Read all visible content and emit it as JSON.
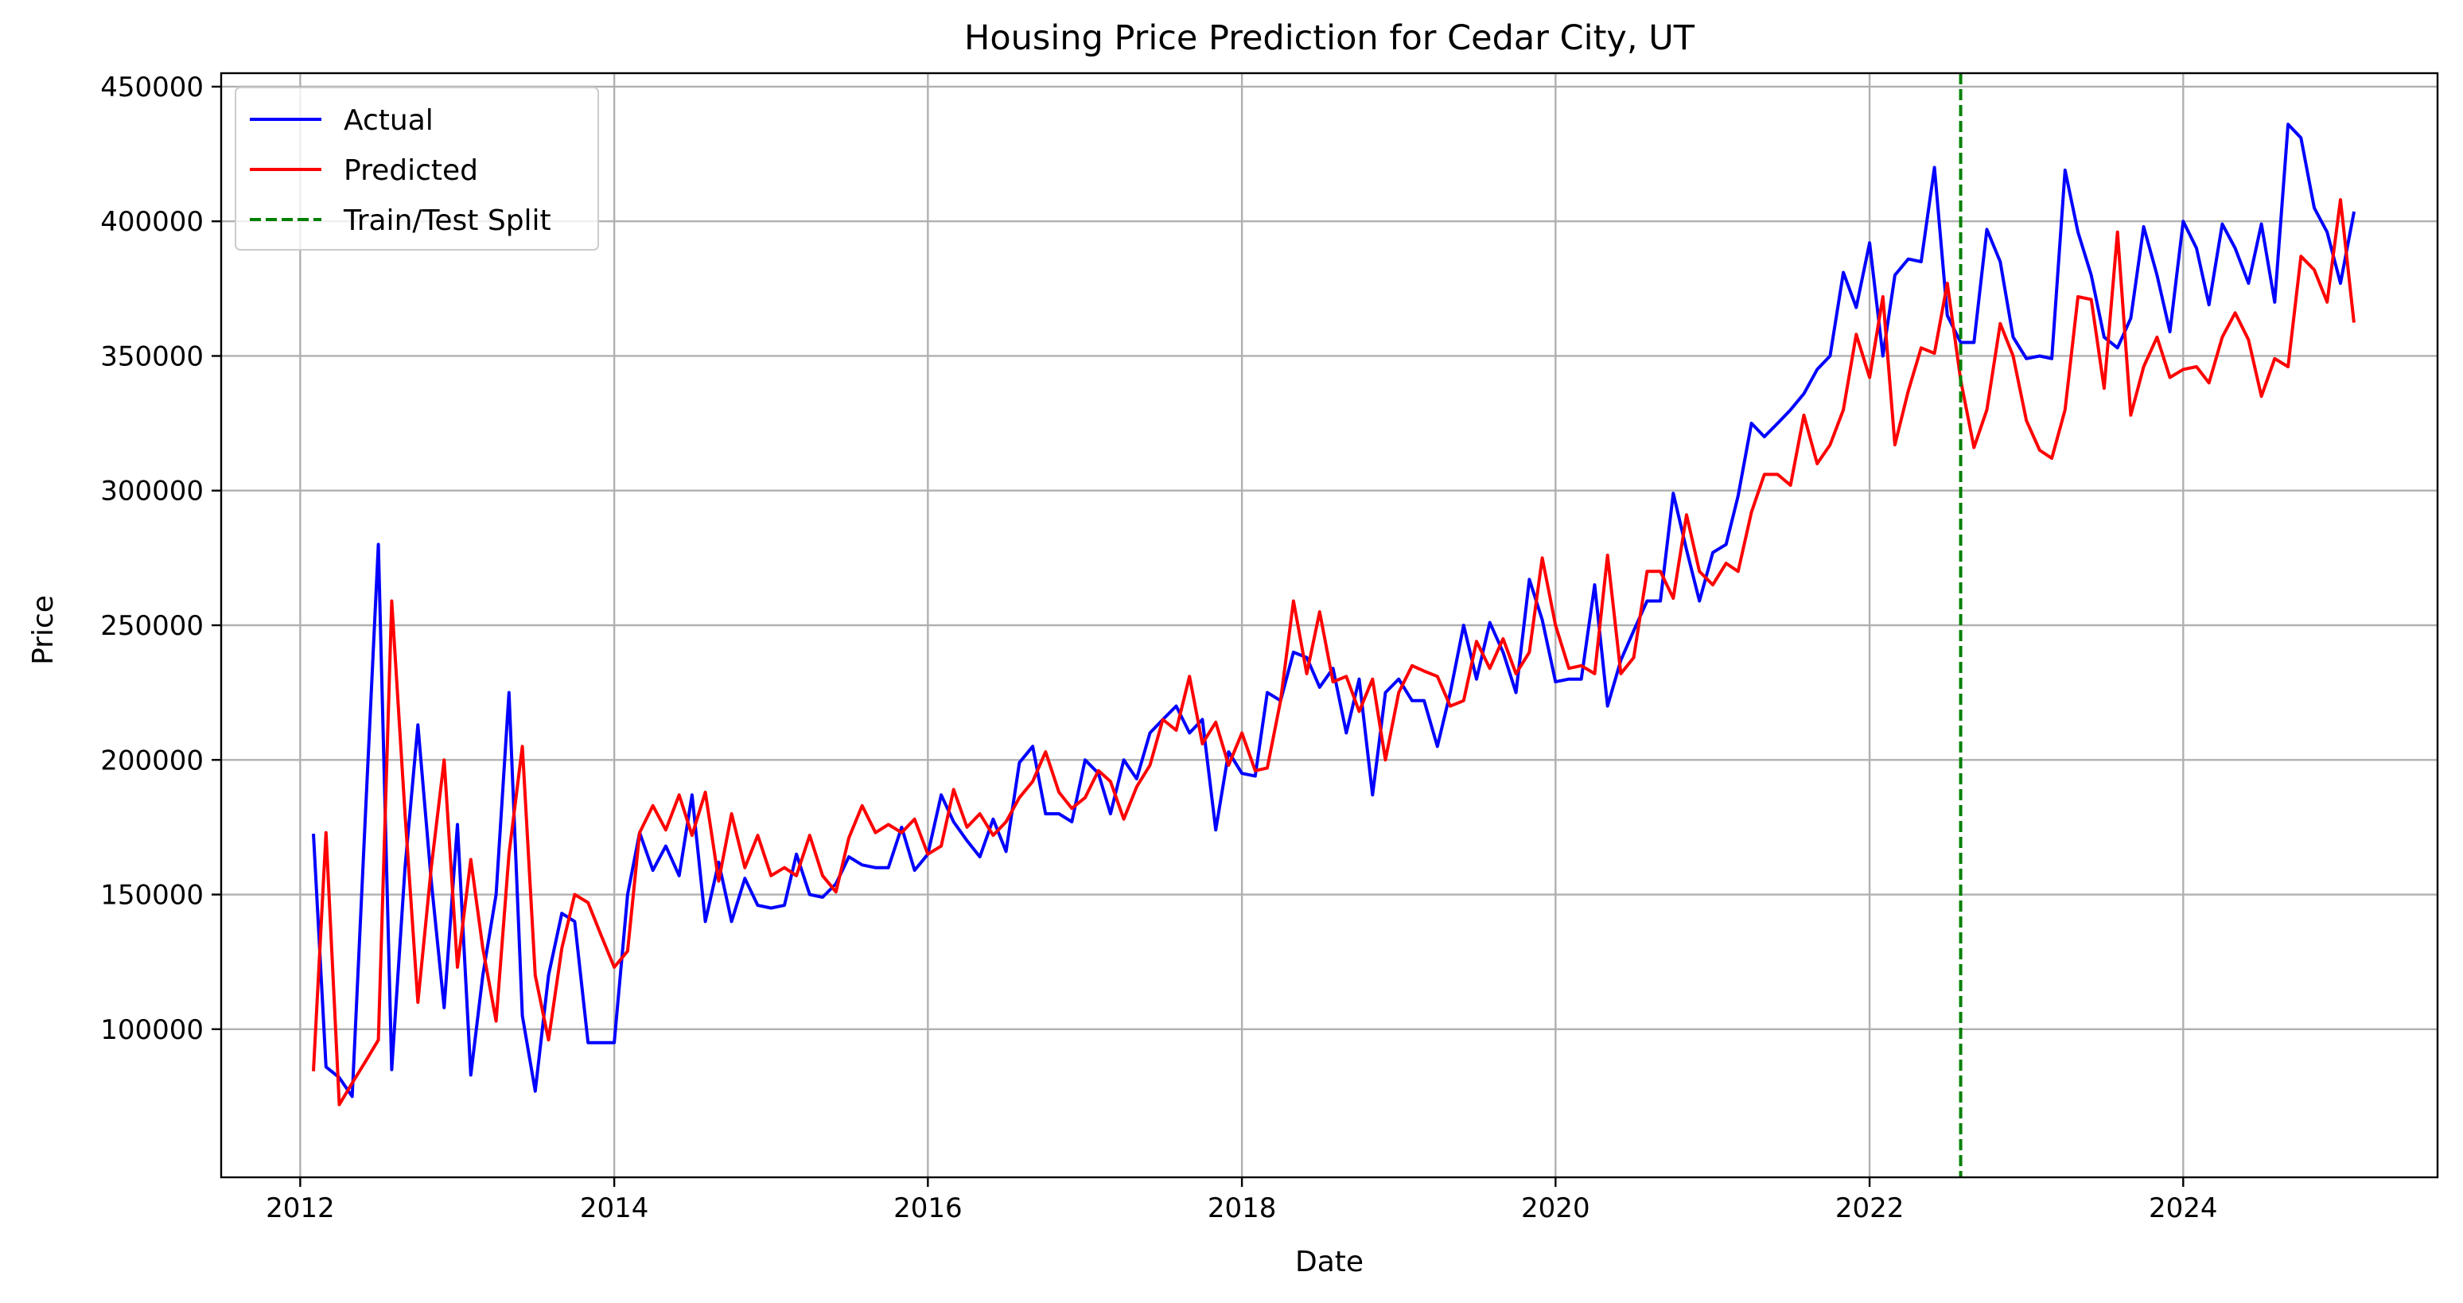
{
  "chart_data": {
    "type": "line",
    "title": "Housing Price Prediction for Cedar City, UT",
    "xlabel": "Date",
    "ylabel": "Price",
    "xlim": [
      "2011-07-01",
      "2025-08-15"
    ],
    "ylim": [
      45000,
      455000
    ],
    "x_ticks": [
      "2012",
      "2014",
      "2016",
      "2018",
      "2020",
      "2022",
      "2024"
    ],
    "y_ticks": [
      100000,
      150000,
      200000,
      250000,
      300000,
      350000,
      400000,
      450000
    ],
    "grid": true,
    "legend_position": "top-left",
    "split_date": "2022-08-01",
    "split_label": "Train/Test Split",
    "x": [
      "2012-02",
      "2012-03",
      "2012-04",
      "2012-05",
      "2012-06",
      "2012-07",
      "2012-08",
      "2012-09",
      "2012-10",
      "2012-11",
      "2012-12",
      "2013-01",
      "2013-02",
      "2013-03",
      "2013-04",
      "2013-05",
      "2013-06",
      "2013-07",
      "2013-08",
      "2013-09",
      "2013-10",
      "2013-11",
      "2013-12",
      "2014-01",
      "2014-02",
      "2014-03",
      "2014-04",
      "2014-05",
      "2014-06",
      "2014-07",
      "2014-08",
      "2014-09",
      "2014-10",
      "2014-11",
      "2014-12",
      "2015-01",
      "2015-02",
      "2015-03",
      "2015-04",
      "2015-05",
      "2015-06",
      "2015-07",
      "2015-08",
      "2015-09",
      "2015-10",
      "2015-11",
      "2015-12",
      "2016-01",
      "2016-02",
      "2016-03",
      "2016-04",
      "2016-05",
      "2016-06",
      "2016-07",
      "2016-08",
      "2016-09",
      "2016-10",
      "2016-11",
      "2016-12",
      "2017-01",
      "2017-02",
      "2017-03",
      "2017-04",
      "2017-05",
      "2017-06",
      "2017-07",
      "2017-08",
      "2017-09",
      "2017-10",
      "2017-11",
      "2017-12",
      "2018-01",
      "2018-02",
      "2018-03",
      "2018-04",
      "2018-05",
      "2018-06",
      "2018-07",
      "2018-08",
      "2018-09",
      "2018-10",
      "2018-11",
      "2018-12",
      "2019-01",
      "2019-02",
      "2019-03",
      "2019-04",
      "2019-05",
      "2019-06",
      "2019-07",
      "2019-08",
      "2019-09",
      "2019-10",
      "2019-11",
      "2019-12",
      "2020-01",
      "2020-02",
      "2020-03",
      "2020-04",
      "2020-05",
      "2020-06",
      "2020-07",
      "2020-08",
      "2020-09",
      "2020-10",
      "2020-11",
      "2020-12",
      "2021-01",
      "2021-02",
      "2021-03",
      "2021-04",
      "2021-05",
      "2021-06",
      "2021-07",
      "2021-08",
      "2021-09",
      "2021-10",
      "2021-11",
      "2021-12",
      "2022-01",
      "2022-02",
      "2022-03",
      "2022-04",
      "2022-05",
      "2022-06",
      "2022-07",
      "2022-08",
      "2022-09",
      "2022-10",
      "2022-11",
      "2022-12",
      "2023-01",
      "2023-02",
      "2023-03",
      "2023-04",
      "2023-05",
      "2023-06",
      "2023-07",
      "2023-08",
      "2023-09",
      "2023-10",
      "2023-11",
      "2023-12",
      "2024-01",
      "2024-02",
      "2024-03",
      "2024-04",
      "2024-05",
      "2024-06",
      "2024-07",
      "2024-08",
      "2024-09",
      "2024-10",
      "2024-11",
      "2024-12",
      "2025-01",
      "2025-02"
    ],
    "series": [
      {
        "name": "Actual",
        "color": "#0000ff",
        "values": [
          172000,
          86000,
          82000,
          75000,
          180000,
          280000,
          85000,
          160000,
          213000,
          155000,
          108000,
          176000,
          83000,
          120000,
          150000,
          225000,
          105000,
          77000,
          120000,
          143000,
          140000,
          95000,
          95000,
          95000,
          150000,
          173000,
          159000,
          168000,
          157000,
          187000,
          140000,
          162000,
          140000,
          156000,
          146000,
          145000,
          146000,
          165000,
          150000,
          149000,
          154000,
          164000,
          161000,
          160000,
          160000,
          175000,
          159000,
          165000,
          187000,
          177000,
          170000,
          164000,
          178000,
          166000,
          199000,
          205000,
          180000,
          180000,
          177000,
          200000,
          195000,
          180000,
          200000,
          193000,
          210000,
          215000,
          220000,
          210000,
          215000,
          174000,
          203000,
          195000,
          194000,
          225000,
          222000,
          240000,
          238000,
          227000,
          234000,
          210000,
          230000,
          187000,
          225000,
          230000,
          222000,
          222000,
          205000,
          225000,
          250000,
          230000,
          251000,
          240000,
          225000,
          267000,
          252000,
          229000,
          230000,
          230000,
          265000,
          220000,
          237000,
          248000,
          259000,
          259000,
          299000,
          278000,
          259000,
          277000,
          280000,
          298000,
          325000,
          320000,
          325000,
          330000,
          336000,
          345000,
          350000,
          381000,
          368000,
          392000,
          350000,
          380000,
          386000,
          385000,
          420000,
          365000,
          355000,
          355000,
          397000,
          385000,
          357000,
          349000,
          350000,
          349000,
          419000,
          396000,
          380000,
          357000,
          353000,
          364000,
          398000,
          380000,
          359000,
          400000,
          390000,
          369000,
          399000,
          390000,
          377000,
          399000,
          370000,
          436000,
          431000,
          405000,
          396000,
          377000,
          403000
        ]
      },
      {
        "name": "Predicted",
        "color": "#ff0000",
        "values": [
          85000,
          173000,
          72000,
          80000,
          88000,
          96000,
          259000,
          180000,
          110000,
          160000,
          200000,
          123000,
          163000,
          130000,
          103000,
          165000,
          205000,
          120000,
          96000,
          130000,
          150000,
          147000,
          135000,
          123000,
          129000,
          173000,
          183000,
          174000,
          187000,
          172000,
          188000,
          155000,
          180000,
          160000,
          172000,
          157000,
          160000,
          157000,
          172000,
          157000,
          151000,
          171000,
          183000,
          173000,
          176000,
          173000,
          178000,
          165000,
          168000,
          189000,
          175000,
          180000,
          172000,
          177000,
          186000,
          192000,
          203000,
          188000,
          182000,
          186000,
          196000,
          192000,
          178000,
          190000,
          198000,
          215000,
          211000,
          231000,
          206000,
          214000,
          198000,
          210000,
          196000,
          197000,
          222000,
          259000,
          232000,
          255000,
          229000,
          231000,
          218000,
          230000,
          200000,
          225000,
          235000,
          233000,
          231000,
          220000,
          222000,
          244000,
          234000,
          245000,
          232000,
          240000,
          275000,
          250000,
          234000,
          235000,
          232000,
          276000,
          232000,
          238000,
          270000,
          270000,
          260000,
          291000,
          270000,
          265000,
          273000,
          270000,
          292000,
          306000,
          306000,
          302000,
          328000,
          310000,
          317000,
          330000,
          358000,
          342000,
          372000,
          317000,
          337000,
          353000,
          351000,
          377000,
          341000,
          316000,
          330000,
          362000,
          350000,
          326000,
          315000,
          312000,
          330000,
          372000,
          371000,
          338000,
          396000,
          328000,
          346000,
          357000,
          342000,
          345000,
          346000,
          340000,
          357000,
          366000,
          356000,
          335000,
          349000,
          346000,
          387000,
          382000,
          370000,
          408000,
          363000
        ]
      }
    ]
  }
}
